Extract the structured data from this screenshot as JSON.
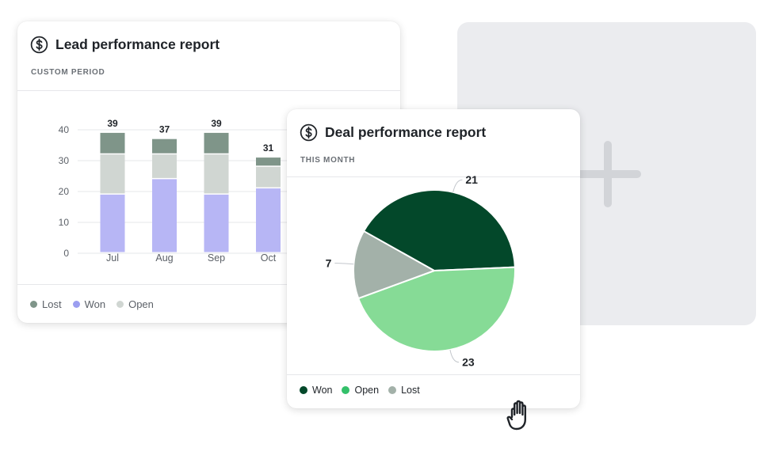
{
  "placeholder": {
    "icon": "plus-icon"
  },
  "lead_card": {
    "title": "Lead performance report",
    "subtitle": "CUSTOM PERIOD",
    "icon": "dollar-icon",
    "legend": [
      {
        "label": "Lost",
        "color": "#7f9589"
      },
      {
        "label": "Won",
        "color": "#9b9ef0"
      },
      {
        "label": "Open",
        "color": "#d0d6d2"
      }
    ]
  },
  "deal_card": {
    "title": "Deal performance report",
    "subtitle": "THIS MONTH",
    "icon": "dollar-icon",
    "legend": [
      {
        "label": "Won",
        "color": "#03482a"
      },
      {
        "label": "Open",
        "color": "#34c06a"
      },
      {
        "label": "Lost",
        "color": "#a3b1a9"
      }
    ]
  },
  "chart_data": [
    {
      "type": "bar",
      "stacked": true,
      "categories": [
        "Jul",
        "Aug",
        "Sep",
        "Oct"
      ],
      "series": [
        {
          "name": "Won",
          "values": [
            19,
            24,
            19,
            21
          ],
          "color": "#b7b6f5"
        },
        {
          "name": "Open",
          "values": [
            13,
            8,
            13,
            7
          ],
          "color": "#d0d6d2"
        },
        {
          "name": "Lost",
          "values": [
            7,
            5,
            7,
            3
          ],
          "color": "#7f9589"
        }
      ],
      "totals": [
        39,
        37,
        39,
        31
      ],
      "yticks": [
        0,
        10,
        20,
        30,
        40
      ],
      "ylim": [
        0,
        40
      ],
      "grid": true,
      "legend_position": "bottom-left"
    },
    {
      "type": "pie",
      "slices": [
        {
          "name": "Won",
          "value": 21,
          "color": "#03482a"
        },
        {
          "name": "Open",
          "value": 23,
          "color": "#86db96"
        },
        {
          "name": "Lost",
          "value": 7,
          "color": "#a3b1a9"
        }
      ],
      "legend_position": "bottom-left"
    }
  ],
  "cursor": {
    "icon": "hand-grab-icon"
  }
}
